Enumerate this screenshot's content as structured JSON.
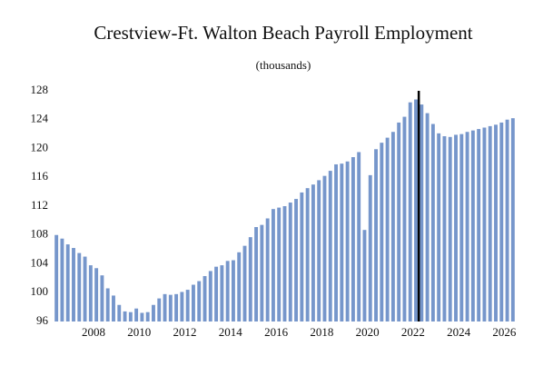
{
  "chart_data": {
    "type": "bar",
    "title": "Crestview-Ft. Walton Beach Payroll Employment",
    "subtitle": "(thousands)",
    "color": "#7696cb",
    "x": [
      2006.375,
      2006.625,
      2006.875,
      2007.125,
      2007.375,
      2007.625,
      2007.875,
      2008.125,
      2008.375,
      2008.625,
      2008.875,
      2009.125,
      2009.375,
      2009.625,
      2009.875,
      2010.125,
      2010.375,
      2010.625,
      2010.875,
      2011.125,
      2011.375,
      2011.625,
      2011.875,
      2012.125,
      2012.375,
      2012.625,
      2012.875,
      2013.125,
      2013.375,
      2013.625,
      2013.875,
      2014.125,
      2014.375,
      2014.625,
      2014.875,
      2015.125,
      2015.375,
      2015.625,
      2015.875,
      2016.125,
      2016.375,
      2016.625,
      2016.875,
      2017.125,
      2017.375,
      2017.625,
      2017.875,
      2018.125,
      2018.375,
      2018.625,
      2018.875,
      2019.125,
      2019.375,
      2019.625,
      2019.875,
      2020.125,
      2020.375,
      2020.625,
      2020.875,
      2021.125,
      2021.375,
      2021.625,
      2021.875,
      2022.125,
      2022.375,
      2022.625,
      2022.875,
      2023.125,
      2023.375,
      2023.625,
      2023.875,
      2024.125,
      2024.375,
      2024.625,
      2024.875,
      2025.125,
      2025.375,
      2025.625,
      2025.875,
      2026.125,
      2026.375
    ],
    "values": [
      108.0,
      107.5,
      106.7,
      106.2,
      105.5,
      105.0,
      103.8,
      103.4,
      102.4,
      100.6,
      99.6,
      98.3,
      97.4,
      97.3,
      97.8,
      97.2,
      97.3,
      98.3,
      99.2,
      99.8,
      99.7,
      99.8,
      100.1,
      100.4,
      101.1,
      101.6,
      102.3,
      103.0,
      103.6,
      103.8,
      104.4,
      104.5,
      105.6,
      106.5,
      107.7,
      109.1,
      109.4,
      110.3,
      111.6,
      111.8,
      112.0,
      112.5,
      113.0,
      113.9,
      114.5,
      115.0,
      115.6,
      116.2,
      116.9,
      117.8,
      117.9,
      118.2,
      118.8,
      119.5,
      108.7,
      116.3,
      119.9,
      120.8,
      121.5,
      122.3,
      123.6,
      124.4,
      126.4,
      126.8,
      126.1,
      124.9,
      123.4,
      122.1,
      121.7,
      121.6,
      121.9,
      122.0,
      122.3,
      122.5,
      122.7,
      122.9,
      123.1,
      123.3,
      123.6,
      124.0,
      124.2
    ],
    "xlim": [
      2006.25,
      2026.5
    ],
    "xticks": [
      2008,
      2010,
      2012,
      2014,
      2016,
      2018,
      2020,
      2022,
      2024,
      2026
    ],
    "ylim": [
      96,
      128
    ],
    "yticks": [
      96,
      100,
      104,
      108,
      112,
      116,
      120,
      124,
      128
    ],
    "vline": 2022.25
  }
}
